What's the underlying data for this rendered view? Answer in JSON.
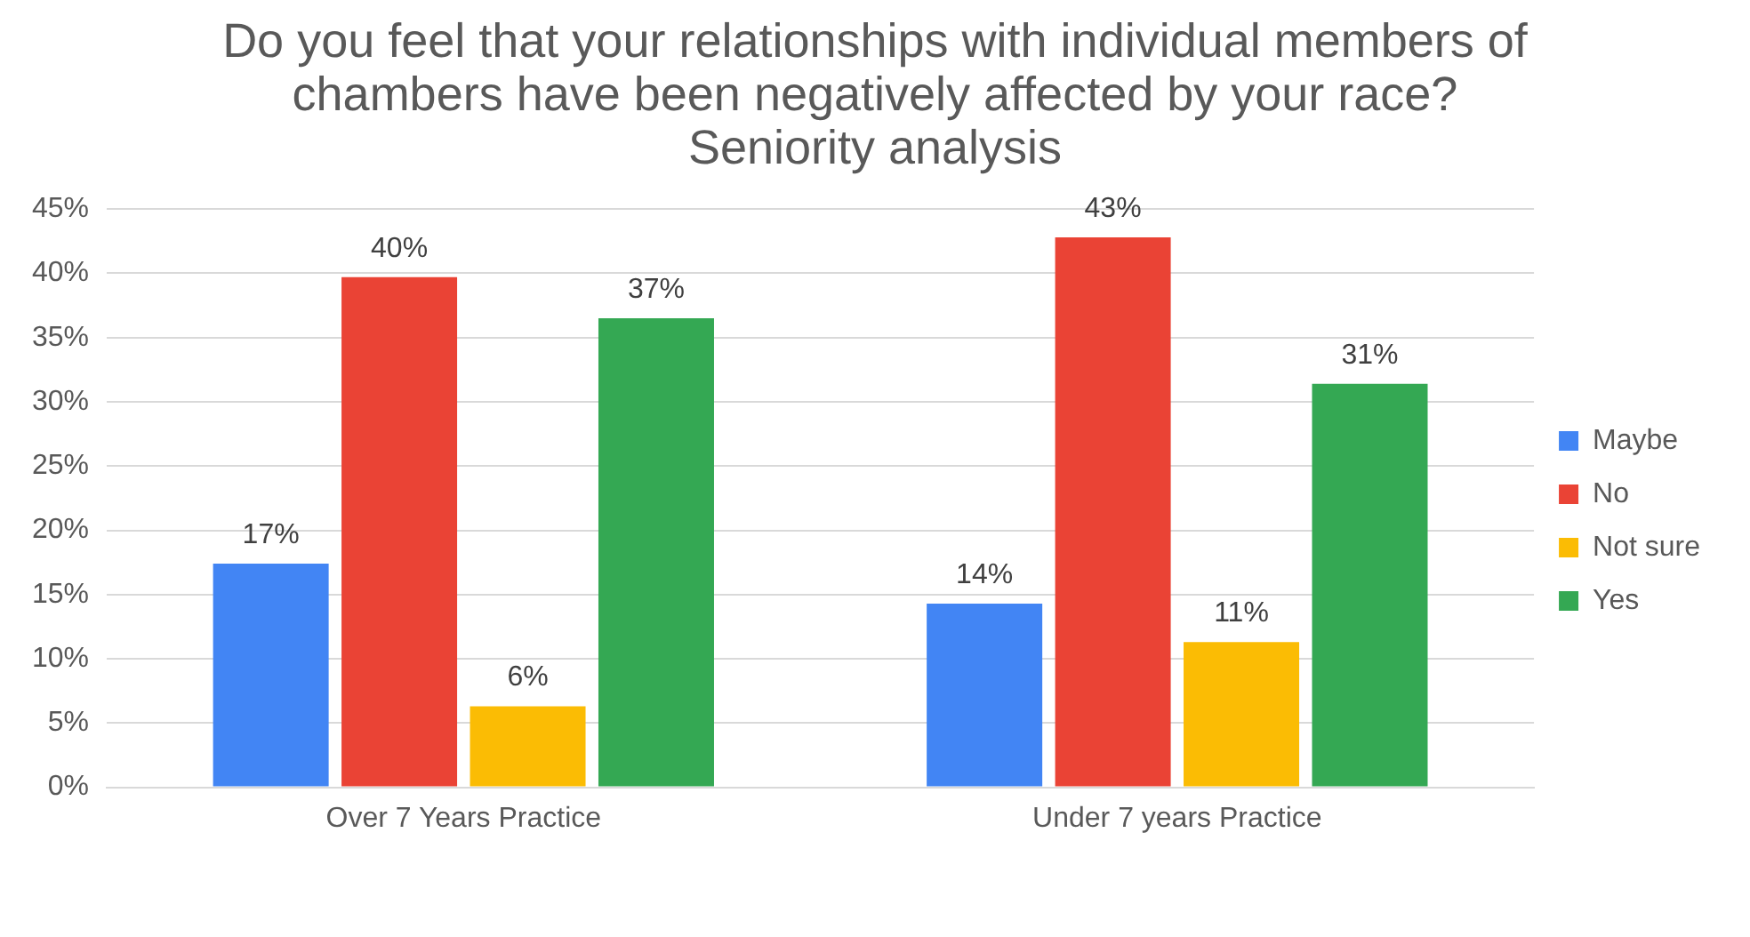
{
  "chart_data": {
    "type": "bar",
    "title": "Do you feel that your relationships with individual members of chambers have been negatively affected by your race?",
    "subtitle": "Seniority analysis",
    "categories": [
      "Over 7 Years Practice",
      "Under 7 years Practice"
    ],
    "series": [
      {
        "name": "Maybe",
        "color": "#4285f4",
        "values": [
          17.4,
          14.3
        ],
        "value_labels": [
          "17%",
          "14%"
        ]
      },
      {
        "name": "No",
        "color": "#ea4335",
        "values": [
          39.7,
          42.8
        ],
        "value_labels": [
          "40%",
          "43%"
        ]
      },
      {
        "name": "Not sure",
        "color": "#fbbc04",
        "values": [
          6.3,
          11.3
        ],
        "value_labels": [
          "6%",
          "11%"
        ]
      },
      {
        "name": "Yes",
        "color": "#34a853",
        "values": [
          36.5,
          31.4
        ],
        "value_labels": [
          "37%",
          "31%"
        ]
      }
    ],
    "ylim": [
      0,
      45
    ],
    "yticks": [
      {
        "value": 0,
        "label": "0%"
      },
      {
        "value": 5,
        "label": "5%"
      },
      {
        "value": 10,
        "label": "10%"
      },
      {
        "value": 15,
        "label": "15%"
      },
      {
        "value": 20,
        "label": "20%"
      },
      {
        "value": 25,
        "label": "25%"
      },
      {
        "value": 30,
        "label": "30%"
      },
      {
        "value": 35,
        "label": "35%"
      },
      {
        "value": 40,
        "label": "40%"
      },
      {
        "value": 45,
        "label": "45%"
      }
    ],
    "grid": "y",
    "legend": "right"
  }
}
